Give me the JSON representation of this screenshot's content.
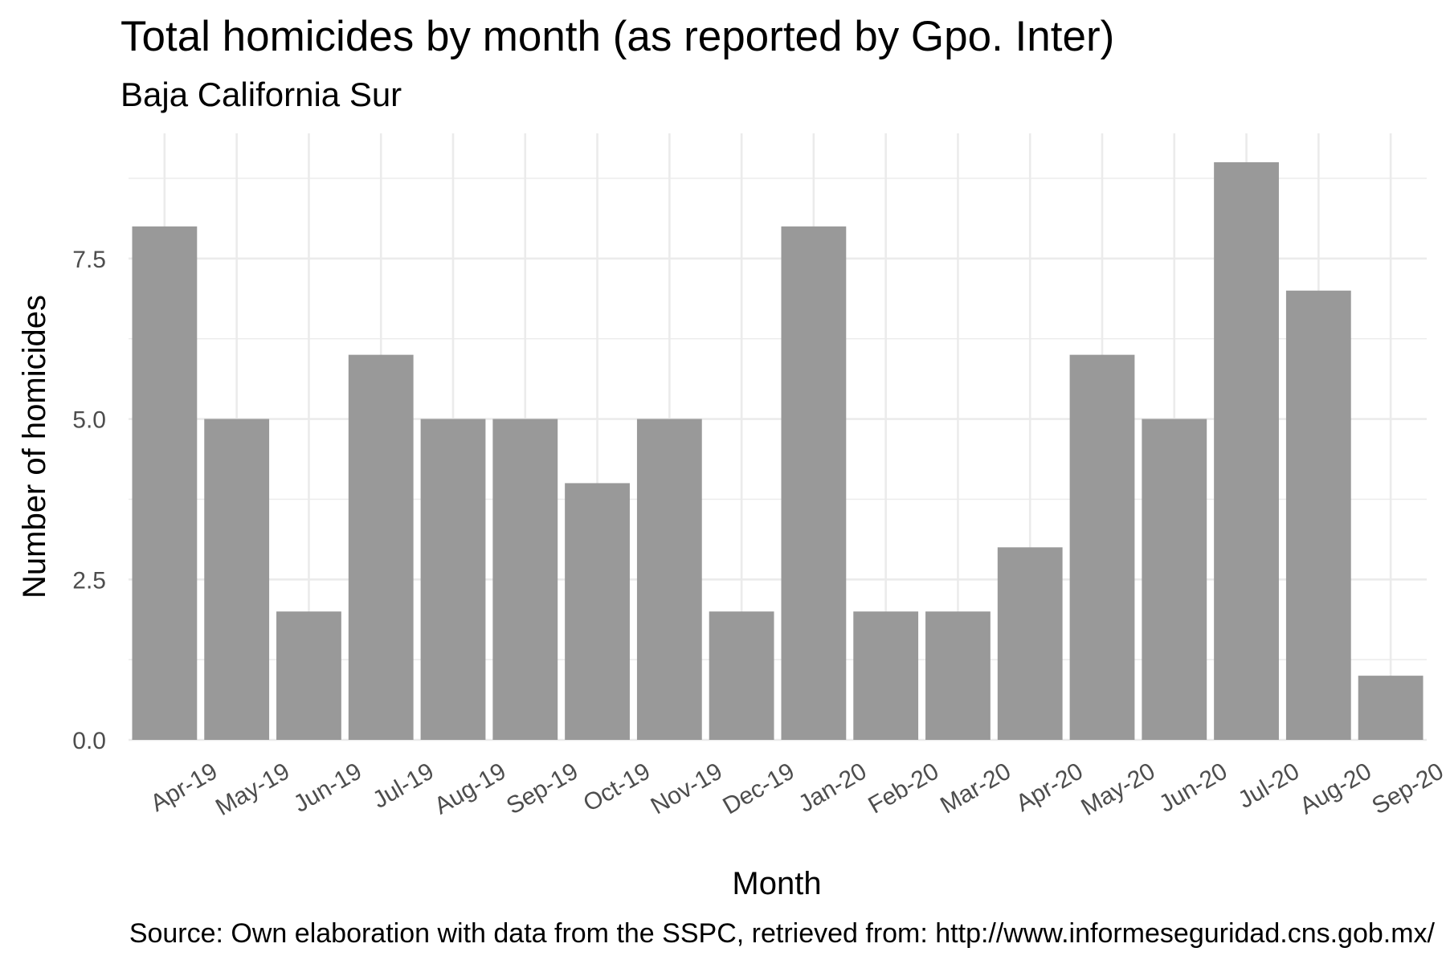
{
  "chart_data": {
    "type": "bar",
    "title": "Total homicides by month (as reported by Gpo. Inter)",
    "subtitle": "Baja California Sur",
    "xlabel": "Month",
    "ylabel": "Number of homicides",
    "caption": "Source: Own elaboration with data from the SSPC, retrieved from: http://www.informeseguridad.cns.gob.mx/",
    "categories": [
      "Apr-19",
      "May-19",
      "Jun-19",
      "Jul-19",
      "Aug-19",
      "Sep-19",
      "Oct-19",
      "Nov-19",
      "Dec-19",
      "Jan-20",
      "Feb-20",
      "Mar-20",
      "Apr-20",
      "May-20",
      "Jun-20",
      "Jul-20",
      "Aug-20",
      "Sep-20"
    ],
    "values": [
      8,
      5,
      2,
      6,
      5,
      5,
      4,
      5,
      2,
      8,
      2,
      2,
      3,
      6,
      5,
      9,
      7,
      1
    ],
    "ylim": [
      0,
      9.45
    ],
    "yticks": [
      "0.0",
      "2.5",
      "5.0",
      "7.5"
    ],
    "grid": true,
    "legend": "none",
    "colors": {
      "bar": "#999999",
      "grid": "#ebebeb",
      "tick_text": "#4d4d4d"
    }
  }
}
